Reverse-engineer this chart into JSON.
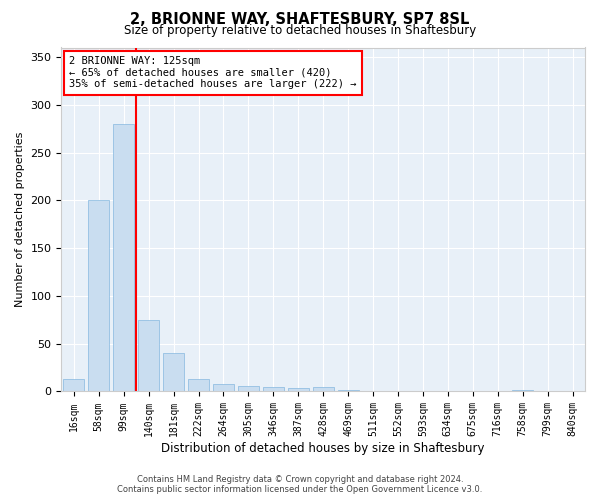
{
  "title": "2, BRIONNE WAY, SHAFTESBURY, SP7 8SL",
  "subtitle": "Size of property relative to detached houses in Shaftesbury",
  "xlabel": "Distribution of detached houses by size in Shaftesbury",
  "ylabel": "Number of detached properties",
  "bar_color": "#c9ddf0",
  "bar_edge_color": "#85b8df",
  "background_color": "#e8f0f8",
  "grid_color": "#ffffff",
  "categories": [
    "16sqm",
    "58sqm",
    "99sqm",
    "140sqm",
    "181sqm",
    "222sqm",
    "264sqm",
    "305sqm",
    "346sqm",
    "387sqm",
    "428sqm",
    "469sqm",
    "511sqm",
    "552sqm",
    "593sqm",
    "634sqm",
    "675sqm",
    "716sqm",
    "758sqm",
    "799sqm",
    "840sqm"
  ],
  "values": [
    13,
    200,
    280,
    75,
    40,
    13,
    8,
    6,
    5,
    4,
    5,
    2,
    1,
    0,
    0,
    0,
    0,
    0,
    2,
    0,
    0
  ],
  "ylim": [
    0,
    360
  ],
  "yticks": [
    0,
    50,
    100,
    150,
    200,
    250,
    300,
    350
  ],
  "property_label": "2 BRIONNE WAY: 125sqm",
  "annotation_line1": "← 65% of detached houses are smaller (420)",
  "annotation_line2": "35% of semi-detached houses are larger (222) →",
  "red_line_x": 2.5,
  "footer_line1": "Contains HM Land Registry data © Crown copyright and database right 2024.",
  "footer_line2": "Contains public sector information licensed under the Open Government Licence v3.0."
}
